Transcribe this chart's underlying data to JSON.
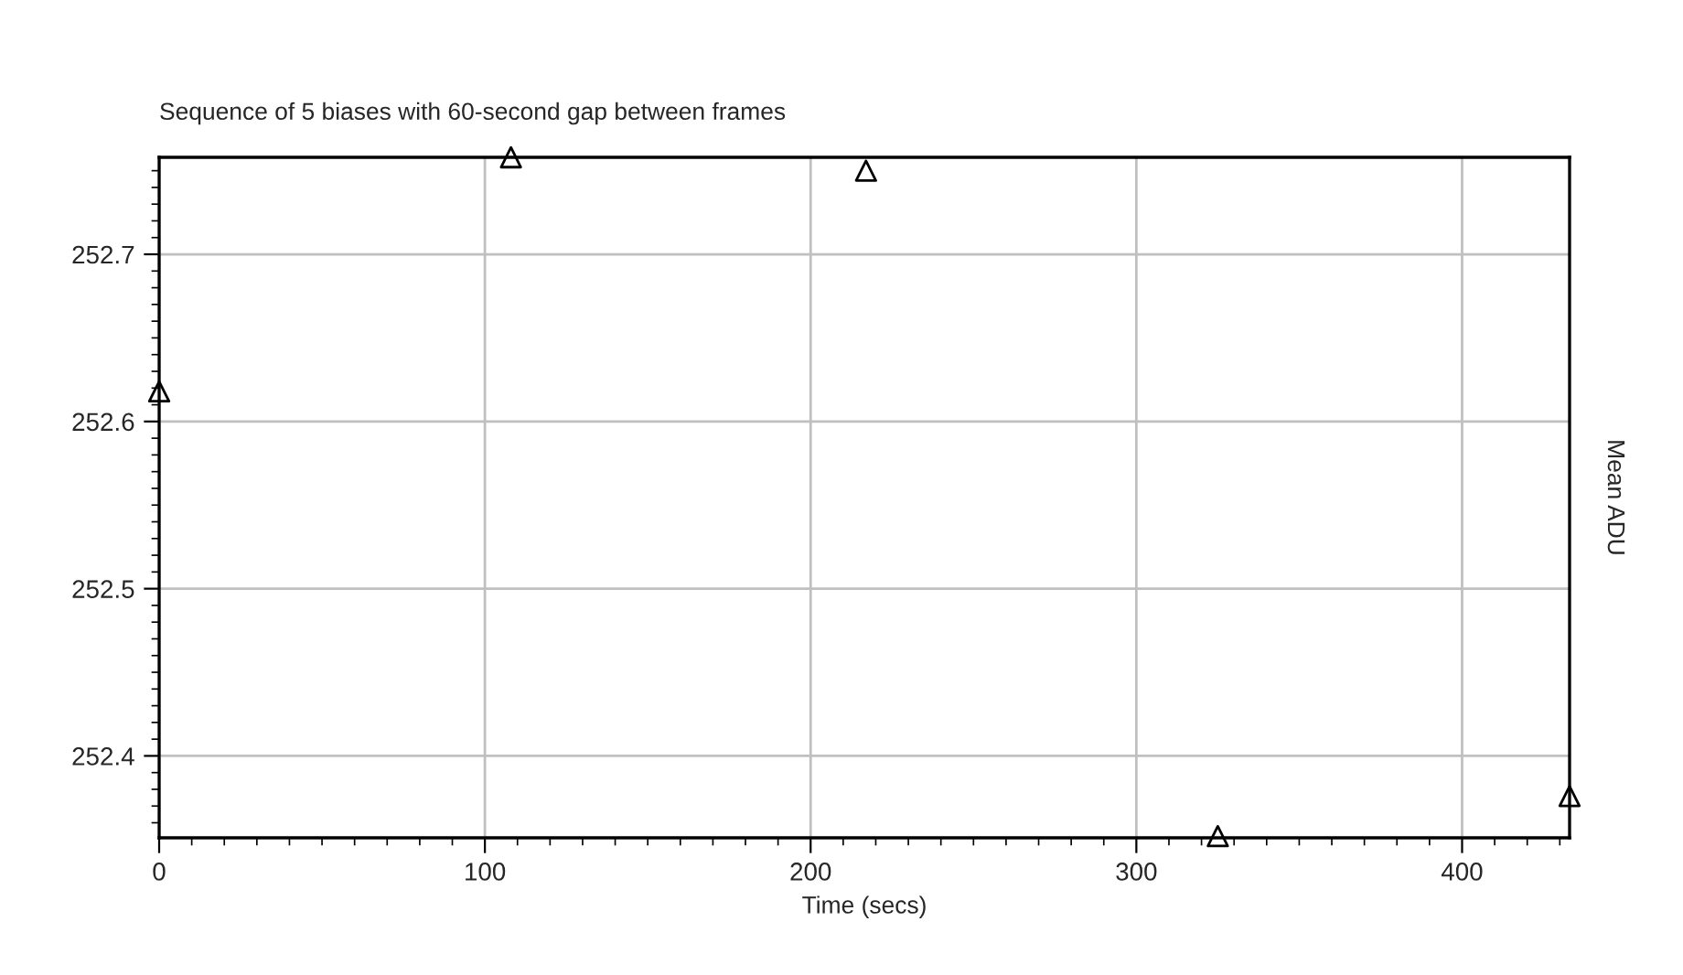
{
  "chart_data": {
    "type": "scatter",
    "title": "Sequence of 5 biases with 60-second gap between frames",
    "xlabel": "Time (secs)",
    "ylabel": "Mean ADU",
    "x": [
      0,
      108,
      217,
      325,
      433
    ],
    "series": [
      {
        "color": "#000000",
        "values": [
          252.618,
          252.758,
          252.75,
          252.352,
          252.376
        ]
      }
    ],
    "xlim": [
      0,
      433
    ],
    "xticks": [
      0,
      100,
      200,
      300,
      400
    ],
    "ylim": [
      252.351,
      252.758
    ],
    "yticks": [
      252.4,
      252.5,
      252.6,
      252.7
    ],
    "grid": true,
    "marker": "triangle",
    "legend": false
  }
}
